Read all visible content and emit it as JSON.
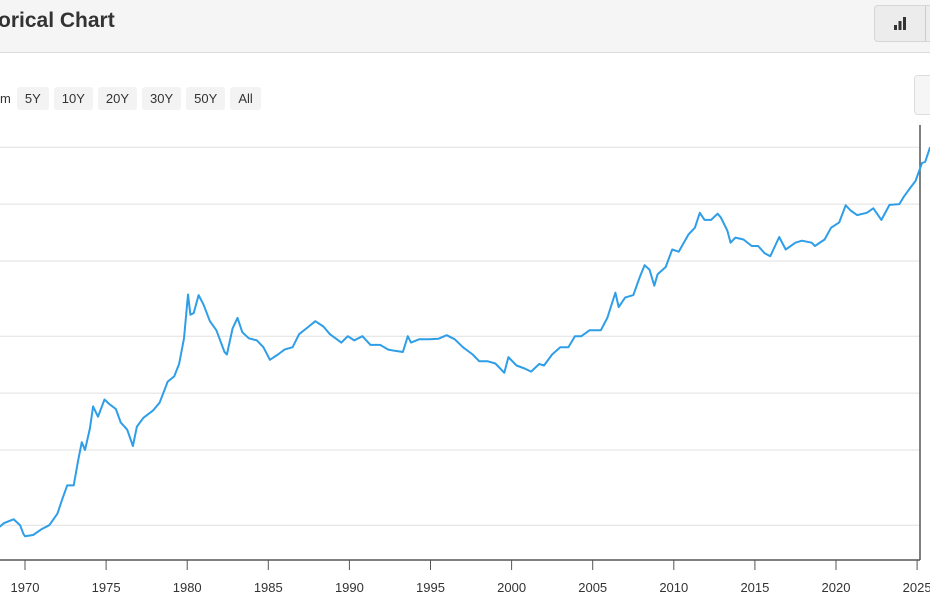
{
  "header": {
    "title": "orical Chart",
    "chart_type_icon": "bar-chart-icon"
  },
  "zoom": {
    "label": "m",
    "options": [
      "5Y",
      "10Y",
      "20Y",
      "30Y",
      "50Y",
      "All"
    ]
  },
  "colors": {
    "line": "#2f9ee8",
    "grid": "#e0e0e0",
    "axis": "#555555"
  },
  "chart_data": {
    "type": "line",
    "title": "",
    "xlabel": "",
    "ylabel": "",
    "y_scale": "log",
    "grid": true,
    "xlim": [
      1968.46,
      2025.8
    ],
    "ylim": [
      28,
      5500
    ],
    "y_gridlines": [
      40,
      100,
      200,
      400,
      1000,
      2000,
      4000
    ],
    "x_tick_labels": [
      "1970",
      "1975",
      "1980",
      "1985",
      "1990",
      "1995",
      "2000",
      "2005",
      "2010",
      "2015",
      "2020",
      "2025"
    ],
    "series": [
      {
        "points": [
          [
            1968.4,
            39
          ],
          [
            1968.7,
            41
          ],
          [
            1969.0,
            42
          ],
          [
            1969.3,
            43
          ],
          [
            1969.7,
            40
          ],
          [
            1969.9,
            36
          ],
          [
            1970.0,
            35
          ],
          [
            1970.5,
            35.5
          ],
          [
            1971.0,
            38
          ],
          [
            1971.5,
            40
          ],
          [
            1972.0,
            46
          ],
          [
            1972.3,
            55
          ],
          [
            1972.6,
            65
          ],
          [
            1973.0,
            65
          ],
          [
            1973.3,
            90
          ],
          [
            1973.5,
            110
          ],
          [
            1973.7,
            100
          ],
          [
            1974.0,
            130
          ],
          [
            1974.2,
            170
          ],
          [
            1974.5,
            150
          ],
          [
            1974.9,
            185
          ],
          [
            1975.2,
            175
          ],
          [
            1975.6,
            165
          ],
          [
            1975.9,
            140
          ],
          [
            1976.3,
            128
          ],
          [
            1976.65,
            105
          ],
          [
            1976.9,
            133
          ],
          [
            1977.3,
            148
          ],
          [
            1977.9,
            162
          ],
          [
            1978.3,
            178
          ],
          [
            1978.8,
            230
          ],
          [
            1979.2,
            245
          ],
          [
            1979.5,
            285
          ],
          [
            1979.8,
            390
          ],
          [
            1980.05,
            665
          ],
          [
            1980.2,
            520
          ],
          [
            1980.4,
            530
          ],
          [
            1980.7,
            660
          ],
          [
            1981.0,
            590
          ],
          [
            1981.4,
            480
          ],
          [
            1981.8,
            430
          ],
          [
            1982.3,
            330
          ],
          [
            1982.45,
            320
          ],
          [
            1982.8,
            440
          ],
          [
            1983.1,
            500
          ],
          [
            1983.4,
            420
          ],
          [
            1983.8,
            390
          ],
          [
            1984.3,
            380
          ],
          [
            1984.7,
            350
          ],
          [
            1985.1,
            300
          ],
          [
            1985.6,
            320
          ],
          [
            1986.0,
            340
          ],
          [
            1986.5,
            350
          ],
          [
            1986.9,
            410
          ],
          [
            1987.5,
            450
          ],
          [
            1987.9,
            480
          ],
          [
            1988.4,
            450
          ],
          [
            1988.8,
            410
          ],
          [
            1989.5,
            370
          ],
          [
            1989.9,
            400
          ],
          [
            1990.3,
            380
          ],
          [
            1990.8,
            400
          ],
          [
            1991.3,
            360
          ],
          [
            1991.9,
            360
          ],
          [
            1992.4,
            340
          ],
          [
            1992.8,
            335
          ],
          [
            1993.3,
            330
          ],
          [
            1993.6,
            400
          ],
          [
            1993.8,
            370
          ],
          [
            1994.3,
            385
          ],
          [
            1994.9,
            385
          ],
          [
            1995.5,
            388
          ],
          [
            1996.0,
            405
          ],
          [
            1996.5,
            385
          ],
          [
            1997.0,
            350
          ],
          [
            1997.6,
            320
          ],
          [
            1998.0,
            295
          ],
          [
            1998.5,
            295
          ],
          [
            1999.0,
            287
          ],
          [
            1999.55,
            256
          ],
          [
            1999.8,
            310
          ],
          [
            2000.3,
            280
          ],
          [
            2000.8,
            270
          ],
          [
            2001.2,
            260
          ],
          [
            2001.7,
            285
          ],
          [
            2002.0,
            280
          ],
          [
            2002.5,
            320
          ],
          [
            2003.0,
            350
          ],
          [
            2003.5,
            350
          ],
          [
            2003.9,
            400
          ],
          [
            2004.3,
            400
          ],
          [
            2004.8,
            430
          ],
          [
            2005.5,
            430
          ],
          [
            2005.9,
            500
          ],
          [
            2006.4,
            680
          ],
          [
            2006.6,
            570
          ],
          [
            2007.0,
            640
          ],
          [
            2007.5,
            660
          ],
          [
            2007.9,
            820
          ],
          [
            2008.2,
            950
          ],
          [
            2008.5,
            900
          ],
          [
            2008.8,
            740
          ],
          [
            2009.0,
            850
          ],
          [
            2009.5,
            930
          ],
          [
            2009.9,
            1150
          ],
          [
            2010.3,
            1120
          ],
          [
            2010.9,
            1380
          ],
          [
            2011.3,
            1500
          ],
          [
            2011.6,
            1800
          ],
          [
            2011.9,
            1650
          ],
          [
            2012.3,
            1650
          ],
          [
            2012.7,
            1780
          ],
          [
            2012.9,
            1700
          ],
          [
            2013.3,
            1450
          ],
          [
            2013.5,
            1250
          ],
          [
            2013.8,
            1330
          ],
          [
            2014.3,
            1300
          ],
          [
            2014.8,
            1200
          ],
          [
            2015.2,
            1200
          ],
          [
            2015.6,
            1100
          ],
          [
            2015.95,
            1060
          ],
          [
            2016.5,
            1340
          ],
          [
            2016.9,
            1150
          ],
          [
            2017.5,
            1250
          ],
          [
            2017.9,
            1280
          ],
          [
            2018.5,
            1250
          ],
          [
            2018.7,
            1200
          ],
          [
            2019.3,
            1300
          ],
          [
            2019.7,
            1500
          ],
          [
            2020.2,
            1600
          ],
          [
            2020.6,
            1970
          ],
          [
            2020.9,
            1850
          ],
          [
            2021.3,
            1750
          ],
          [
            2021.9,
            1800
          ],
          [
            2022.3,
            1900
          ],
          [
            2022.8,
            1650
          ],
          [
            2023.3,
            1980
          ],
          [
            2023.9,
            2000
          ],
          [
            2024.2,
            2200
          ],
          [
            2024.6,
            2450
          ],
          [
            2024.9,
            2650
          ],
          [
            2025.3,
            3300
          ],
          [
            2025.5,
            3350
          ],
          [
            2025.8,
            4000
          ]
        ]
      }
    ]
  }
}
